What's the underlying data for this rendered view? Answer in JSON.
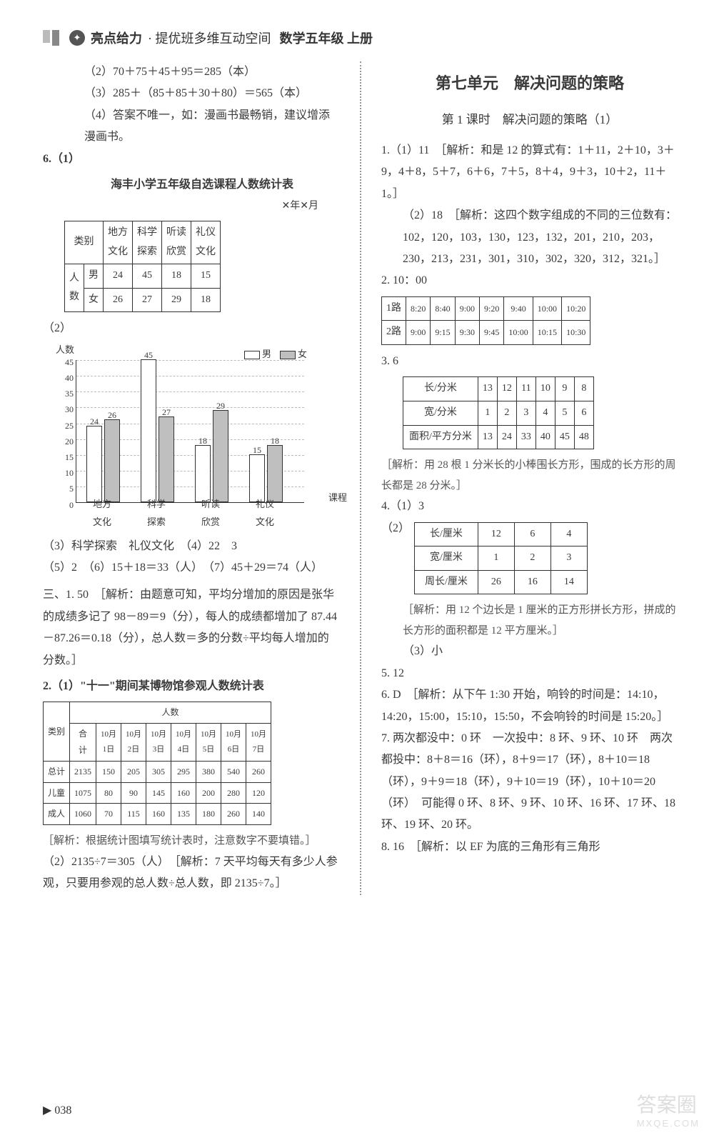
{
  "header": {
    "brand": "亮点给力",
    "sub": "· 提优班多维互动空间",
    "subject": "数学五年级 上册"
  },
  "left": {
    "p1": "（2）70＋75＋45＋95＝285（本）",
    "p2": "（3）285＋（85＋85＋30＋80）＝565（本）",
    "p3": "（4）答案不唯一，如：漫画书最畅销，建议增添漫画书。",
    "q6": "6.（1）",
    "tbl1_caption": "海丰小学五年级自选课程人数统计表",
    "tbl1_sub": "✕年✕月",
    "tbl1": {
      "cat": "类别",
      "cols": [
        "地方文化",
        "科学探索",
        "听读欣赏",
        "礼仪文化"
      ],
      "rowLabel": "人数",
      "rows": [
        {
          "label": "男",
          "vals": [
            24,
            45,
            18,
            15
          ]
        },
        {
          "label": "女",
          "vals": [
            26,
            27,
            29,
            18
          ]
        }
      ]
    },
    "q6_2": "（2）",
    "chart": {
      "ylabel": "人数",
      "ymax": 45,
      "ytick_step": 5,
      "categories": [
        "地方文化",
        "科学探索",
        "听读欣赏",
        "礼仪文化"
      ],
      "xlabel_axis": "课程",
      "series": [
        {
          "name": "男",
          "fill": "#ffffff",
          "vals": [
            24,
            45,
            18,
            15
          ]
        },
        {
          "name": "女",
          "fill": "#bfbfbf",
          "vals": [
            26,
            27,
            29,
            18
          ]
        }
      ],
      "bar_outline": "#333333",
      "grid_color": "#bbbbbb"
    },
    "p4": "（3）科学探索　礼仪文化　（4）22　3",
    "p5": "（5）2　（6）15＋18＝33（人）　（7）45＋29＝74（人）",
    "san": "三、1. 50　［解析：由题意可知，平均分增加的原因是张华的成绩多记了 98－89＝9（分），每人的成绩都增加了 87.44－87.26＝0.18（分），总人数＝多的分数÷平均每人增加的分数。］",
    "q2": "2.（1）\"十一\"期间某博物馆参观人数统计表",
    "tbl2": {
      "headTop": "人数",
      "colHead1": "类别",
      "cols": [
        "合计",
        "10月1日",
        "10月2日",
        "10月3日",
        "10月4日",
        "10月5日",
        "10月6日",
        "10月7日"
      ],
      "rows": [
        {
          "label": "总计",
          "vals": [
            2135,
            150,
            205,
            305,
            295,
            380,
            540,
            260
          ]
        },
        {
          "label": "儿童",
          "vals": [
            1075,
            80,
            90,
            145,
            160,
            200,
            280,
            120
          ]
        },
        {
          "label": "成人",
          "vals": [
            1060,
            70,
            115,
            160,
            135,
            180,
            260,
            140
          ]
        }
      ]
    },
    "note1": "［解析：根据统计图填写统计表时，注意数字不要填错。］",
    "p6": "（2）2135÷7＝305（人）　［解析：7 天平均每天有多少人参观，只要用参观的总人数÷总人数，即 2135÷7。］"
  },
  "right": {
    "unit": "第七单元　解决问题的策略",
    "lesson": "第 1 课时　解决问题的策略（1）",
    "q1": "1.（1）11　［解析：和是 12 的算式有：1＋11，2＋10，3＋9，4＋8，5＋7，6＋6，7＋5，8＋4，9＋3，10＋2，11＋1。］",
    "q1b": "（2）18　［解析：这四个数字组成的不同的三位数有：102，120，103，130，123，132，201，210，203，230，213，231，301，310，302，320，312，321。］",
    "q2": "2. 10：00",
    "tbl_bus": {
      "rows": [
        {
          "label": "1路",
          "vals": [
            "8:20",
            "8:40",
            "9:00",
            "9:20",
            "9:40",
            "10:00",
            "10:20"
          ]
        },
        {
          "label": "2路",
          "vals": [
            "9:00",
            "9:15",
            "9:30",
            "9:45",
            "10:00",
            "10:15",
            "10:30"
          ]
        }
      ]
    },
    "q3": "3. 6",
    "tbl_rect": {
      "rows": [
        {
          "label": "长/分米",
          "vals": [
            13,
            12,
            11,
            10,
            9,
            8
          ]
        },
        {
          "label": "宽/分米",
          "vals": [
            1,
            2,
            3,
            4,
            5,
            6
          ]
        },
        {
          "label": "面积/平方分米",
          "vals": [
            13,
            24,
            33,
            40,
            45,
            48
          ]
        }
      ]
    },
    "note3": "［解析：用 28 根 1 分米长的小棒围长方形，围成的长方形的周长都是 28 分米。］",
    "q4": "4.（1）3",
    "q4_2": "（2）",
    "tbl_rect2": {
      "rows": [
        {
          "label": "长/厘米",
          "vals": [
            12,
            6,
            4
          ]
        },
        {
          "label": "宽/厘米",
          "vals": [
            1,
            2,
            3
          ]
        },
        {
          "label": "周长/厘米",
          "vals": [
            26,
            16,
            14
          ]
        }
      ]
    },
    "note4": "［解析：用 12 个边长是 1 厘米的正方形拼长方形，拼成的长方形的面积都是 12 平方厘米。］",
    "q4_3": "（3）小",
    "q5": "5. 12",
    "q6": "6. D　［解析：从下午 1:30 开始，响铃的时间是：14:10，14:20，15:00，15:10，15:50，不会响铃的时间是 15:20。］",
    "q7": "7. 两次都没中：0 环　一次投中：8 环、9 环、10 环　两次都投中：8＋8＝16（环），8＋9＝17（环），8＋10＝18（环），9＋9＝18（环），9＋10＝19（环），10＋10＝20（环）　可能得 0 环、8 环、9 环、10 环、16 环、17 环、18 环、19 环、20 环。",
    "q8": "8. 16　［解析：以 EF 为底的三角形有三角形"
  },
  "pageNum": "038",
  "watermark": {
    "main": "答案圈",
    "sub": "MXQE.COM"
  }
}
